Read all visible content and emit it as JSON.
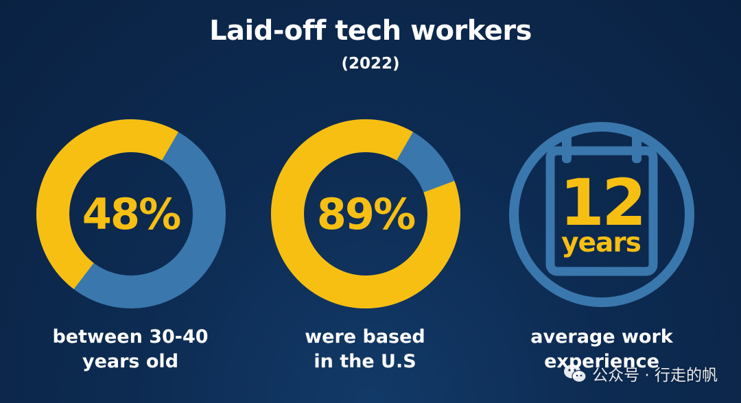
{
  "title": "Laid-off tech workers",
  "subtitle": "(2022)",
  "colors": {
    "background": "#0d2b52",
    "ring_track": "#3a77ad",
    "highlight": "#f7bf12",
    "text": "#ffffff"
  },
  "chart_data": [
    {
      "type": "pie",
      "values": [
        48,
        52
      ],
      "value_label": "48%",
      "caption": [
        "between 30-40",
        "years old"
      ]
    },
    {
      "type": "pie",
      "values": [
        89,
        11
      ],
      "value_label": "89%",
      "caption": [
        "were based",
        "in the U.S"
      ]
    }
  ],
  "stat": {
    "icon": "calendar-icon",
    "number": "12",
    "unit": "years",
    "caption": [
      "average work",
      "experience"
    ]
  },
  "watermark": "公众号 · 行走的帆"
}
